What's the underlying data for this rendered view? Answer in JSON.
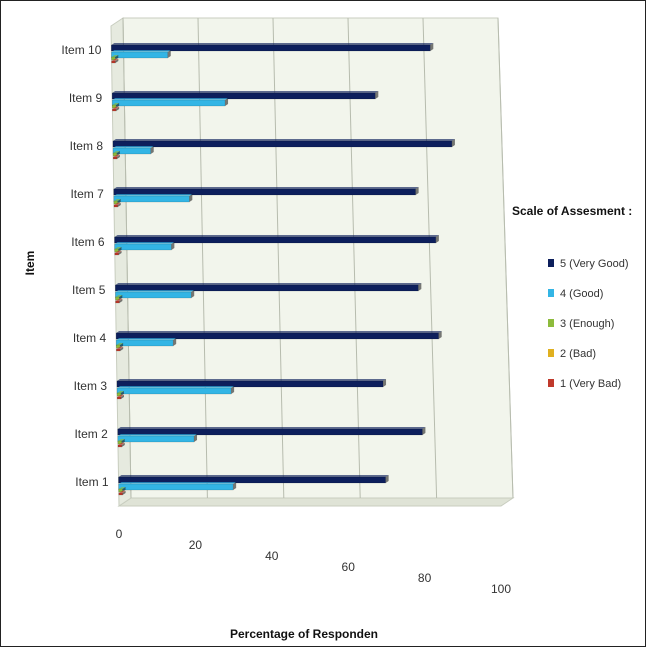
{
  "chart_data": {
    "type": "bar",
    "orientation": "horizontal",
    "style": "3d",
    "categories": [
      "Item 1",
      "Item 2",
      "Item 3",
      "Item 4",
      "Item 5",
      "Item 6",
      "Item 7",
      "Item 8",
      "Item 9",
      "Item 10"
    ],
    "series": [
      {
        "name": "1 (Very Bad)",
        "color": "#c0392b",
        "values": [
          1,
          1,
          1,
          1,
          1,
          1,
          1,
          1,
          1,
          1
        ]
      },
      {
        "name": "2  (Bad)",
        "color": "#e0b020",
        "values": [
          0,
          0,
          0,
          0,
          0,
          0,
          0,
          0,
          0,
          0
        ]
      },
      {
        "name": "3 (Enough)",
        "color": "#8dbb3c",
        "values": [
          1,
          1,
          1,
          1,
          1,
          1,
          1,
          1,
          1,
          1
        ]
      },
      {
        "name": "4 (Good)",
        "color": "#33b5e5",
        "values": [
          30,
          20,
          30,
          15,
          20,
          15,
          20,
          10,
          30,
          15
        ]
      },
      {
        "name": "5 (Very Good)",
        "color": "#0d1f5c",
        "values": [
          70,
          80,
          70,
          85,
          80,
          85,
          80,
          90,
          70,
          85
        ]
      }
    ],
    "xlabel": "Percentage of Responden",
    "ylabel": "Item",
    "x_ticks": [
      "0",
      "20",
      "40",
      "60",
      "80",
      "100"
    ],
    "xlim": [
      0,
      100
    ],
    "legend_title": "Scale of Assesment :",
    "legend_position": "right",
    "grid": true
  }
}
